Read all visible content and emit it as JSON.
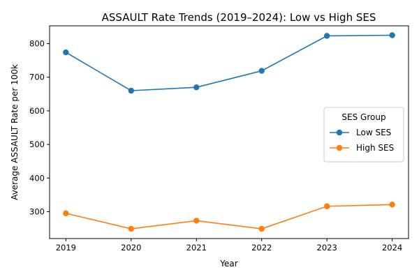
{
  "chart_data": {
    "type": "line",
    "title": "ASSAULT Rate Trends (2019–2024): Low vs High SES",
    "xlabel": "Year",
    "ylabel": "Average ASSAULT Rate per 100k",
    "x": [
      2019,
      2020,
      2021,
      2022,
      2023,
      2024
    ],
    "x_tick_labels": [
      "2019",
      "2020",
      "2021",
      "2022",
      "2023",
      "2024"
    ],
    "y_ticks": [
      300,
      400,
      500,
      600,
      700,
      800
    ],
    "y_tick_labels": [
      "300",
      "400",
      "500",
      "600",
      "700",
      "800"
    ],
    "xlim": [
      2018.75,
      2024.25
    ],
    "ylim": [
      220,
      853
    ],
    "grid": false,
    "legend": {
      "title": "SES Group",
      "placement": "center-right"
    },
    "series": [
      {
        "name": "Low SES",
        "color": "#1f77b4",
        "marker": "circle",
        "values": [
          774,
          660,
          670,
          719,
          823,
          825
        ]
      },
      {
        "name": "High SES",
        "color": "#ff7f0e",
        "marker": "circle",
        "values": [
          295,
          249,
          273,
          249,
          316,
          321
        ]
      }
    ]
  }
}
